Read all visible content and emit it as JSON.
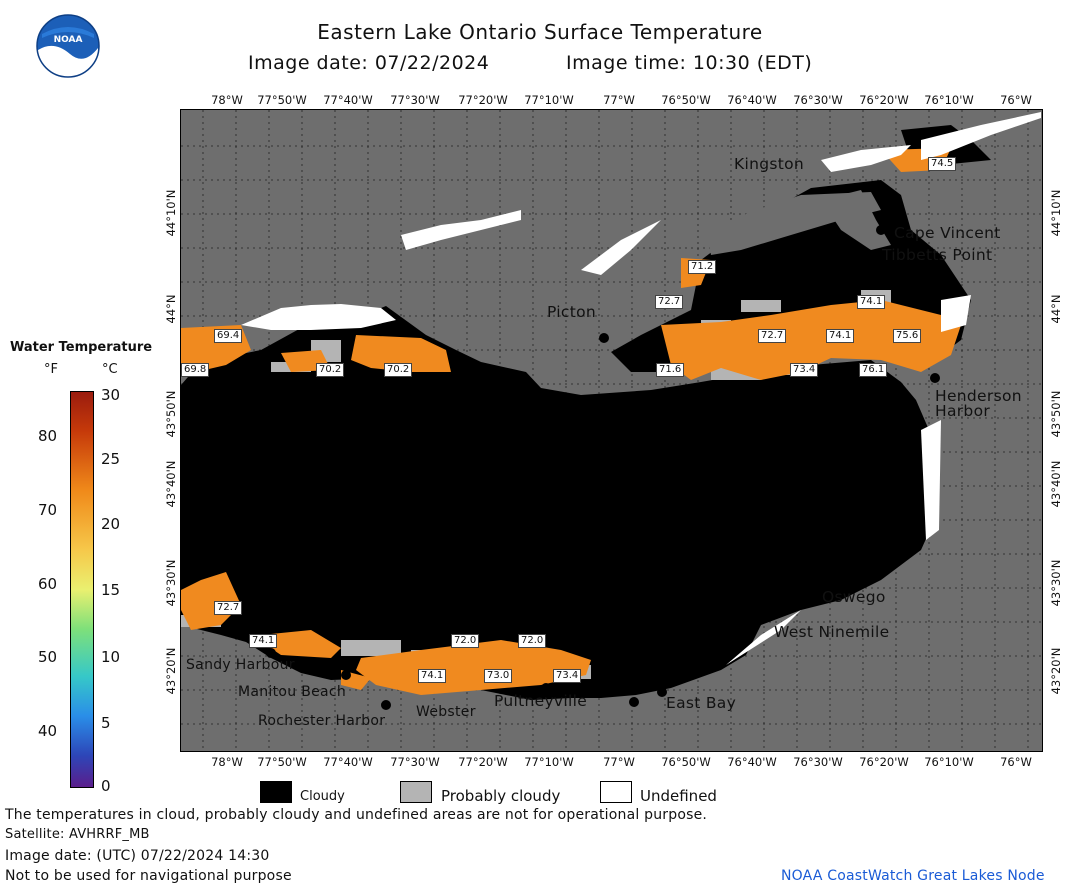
{
  "header": {
    "title": "Eastern Lake Ontario Surface Temperature",
    "date_label": "Image date: 07/22/2024",
    "time_label": "Image time: 10:30 (EDT)"
  },
  "logo": {
    "text": "NOAA"
  },
  "colorbar": {
    "title": "Water Temperature",
    "unit_f": "°F",
    "unit_c": "°C",
    "f_ticks": [
      "80",
      "70",
      "60",
      "50",
      "40"
    ],
    "c_ticks": [
      "30",
      "25",
      "20",
      "15",
      "10",
      "5",
      "0"
    ]
  },
  "map": {
    "lon_labels_top": [
      "78°W",
      "77°50'W",
      "77°40'W",
      "77°30'W",
      "77°20'W",
      "77°10'W",
      "77°W",
      "76°50'W",
      "76°40'W",
      "76°30'W",
      "76°20'W",
      "76°10'W",
      "76°W"
    ],
    "lon_labels_bottom": [
      "78°W",
      "77°50'W",
      "77°40'W",
      "77°30'W",
      "77°20'W",
      "77°10'W",
      "77°W",
      "76°50'W",
      "76°40'W",
      "76°30'W",
      "76°20'W",
      "76°10'W",
      "76°W"
    ],
    "lat_labels": [
      "44°10'N",
      "44°N",
      "43°50'N",
      "43°40'N",
      "43°30'N",
      "43°20'N"
    ],
    "places": [
      "Kingston",
      "Cape Vincent",
      "Tibbetts Point",
      "Picton",
      "Henderson",
      "Harbor",
      "Oswego",
      "West Ninemile",
      "Sandy Harbour",
      "Manitou Beach",
      "Rochester Harbor",
      "Webster",
      "Pultneyville",
      "East Bay"
    ],
    "temperature_labels": [
      "74.5",
      "71.2",
      "72.7",
      "74.1",
      "72.7",
      "74.1",
      "75.6",
      "71.6",
      "73.4",
      "76.1",
      "69.4",
      "69.8",
      "70.2",
      "70.2",
      "72.7",
      "74.1",
      "72.0",
      "72.0",
      "74.1",
      "73.0",
      "73.4"
    ]
  },
  "legend": {
    "cloudy": "Cloudy",
    "probably_cloudy": "Probably cloudy",
    "undefined": "Undefined"
  },
  "footer": {
    "line1": "The temperatures in cloud, probably cloudy and undefined areas are not for operational purpose.",
    "line2": "Satellite: AVHRRF_MB",
    "line3": "Image date: (UTC) 07/22/2024  14:30",
    "line4": "Not to be used for navigational purpose",
    "credit": "NOAA CoastWatch Great Lakes Node"
  },
  "colors": {
    "land": "#6e6e6e",
    "cloudy": "#000000",
    "probably_cloudy": "#b4b4b4",
    "undefined": "#ffffff",
    "warm_water": "#f0851f",
    "credit": "#1a5bd6"
  }
}
